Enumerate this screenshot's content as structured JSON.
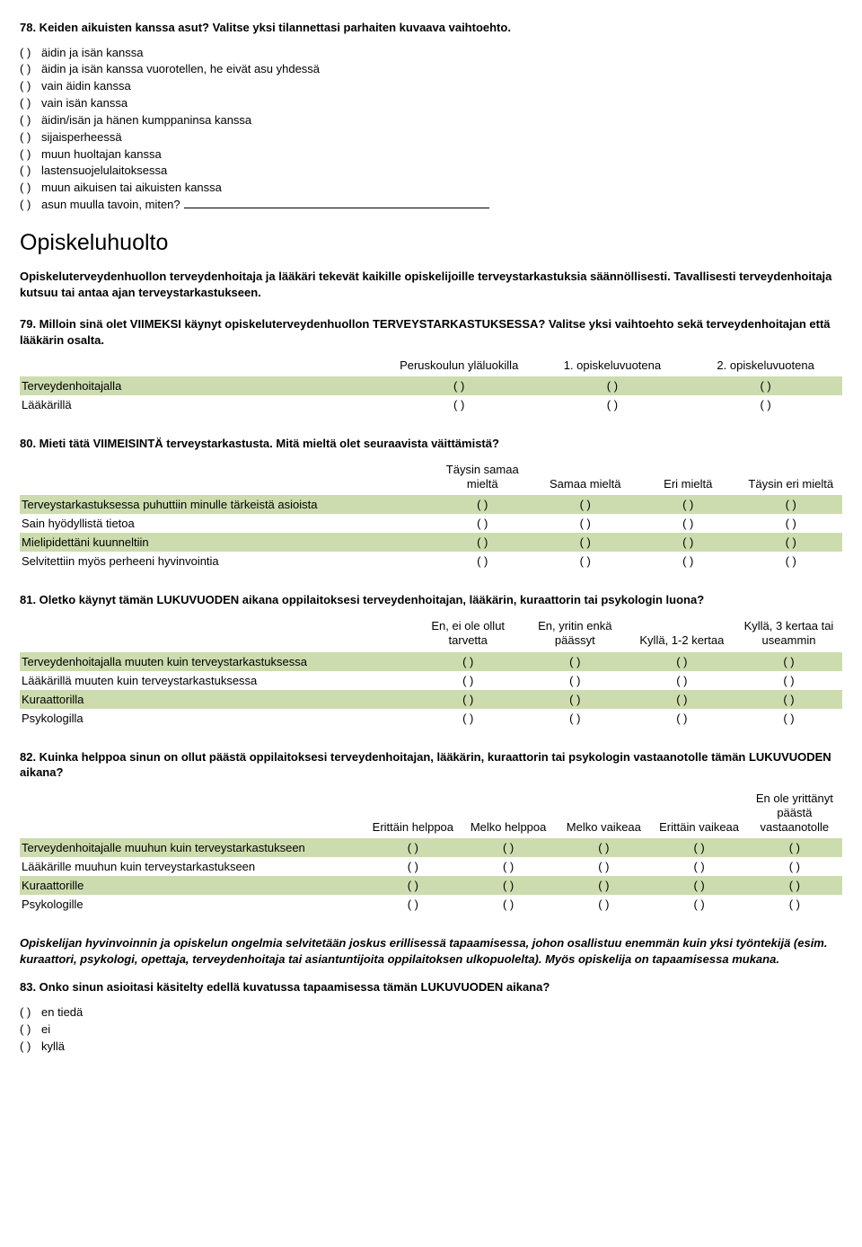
{
  "q78": {
    "title": "78. Keiden aikuisten kanssa asut? Valitse yksi tilannettasi parhaiten kuvaava vaihtoehto.",
    "bullet": "( )",
    "opts": [
      "äidin ja isän kanssa",
      "äidin ja isän kanssa vuorotellen, he eivät asu yhdessä",
      "vain äidin kanssa",
      "vain isän kanssa",
      "äidin/isän ja hänen kumppaninsa kanssa",
      "sijaisperheessä",
      "muun huoltajan kanssa",
      "lastensuojelulaitoksessa",
      "muun aikuisen tai aikuisten kanssa",
      "asun muulla tavoin, miten?"
    ]
  },
  "section_title": "Opiskeluhuolto",
  "section_intro": "Opiskeluterveydenhuollon terveydenhoitaja ja lääkäri tekevät kaikille opiskelijoille terveystarkastuksia säännöllisesti. Tavallisesti terveydenhoitaja kutsuu tai antaa ajan terveystarkastukseen.",
  "q79": {
    "title": "79. Milloin sinä olet VIIMEKSI käynyt opiskeluterveydenhuollon TERVEYSTARKASTUKSESSA? Valitse yksi vaihtoehto sekä terveydenhoitajan että lääkärin osalta.",
    "headers": [
      "Peruskoulun yläluokilla",
      "1. opiskeluvuotena",
      "2. opiskeluvuotena"
    ],
    "rows": [
      "Terveydenhoitajalla",
      "Lääkärillä"
    ],
    "cell": "( )",
    "label_width": "44%",
    "col_width": "18.6%"
  },
  "q80": {
    "title": "80. Mieti tätä VIIMEISINTÄ terveystarkastusta. Mitä mieltä olet seuraavista väittämistä?",
    "headers": [
      "Täysin samaa mieltä",
      "Samaa mieltä",
      "Eri mieltä",
      "Täysin eri mieltä"
    ],
    "rows": [
      "Terveystarkastuksessa puhuttiin minulle tärkeistä asioista",
      "Sain hyödyllistä tietoa",
      "Mielipidettäni kuunneltiin",
      "Selvitettiin myös perheeni hyvinvointia"
    ],
    "cell": "( )",
    "label_width": "50%",
    "col_width": "12.5%"
  },
  "q81": {
    "title": "81. Oletko käynyt tämän LUKUVUODEN aikana oppilaitoksesi terveydenhoitajan, lääkärin, kuraattorin tai psykologin luona?",
    "headers": [
      "En, ei ole ollut tarvetta",
      "En, yritin enkä päässyt",
      "Kyllä, 1-2 kertaa",
      "Kyllä, 3 kertaa tai useammin"
    ],
    "rows": [
      "Terveydenhoitajalla muuten kuin terveystarkastuksessa",
      "Lääkärillä muuten kuin terveystarkastuksessa",
      "Kuraattorilla",
      "Psykologilla"
    ],
    "cell": "( )",
    "label_width": "48%",
    "col_width": "13%"
  },
  "q82": {
    "title": "82. Kuinka helppoa sinun on ollut päästä oppilaitoksesi terveydenhoitajan, lääkärin, kuraattorin tai psykologin vastaanotolle tämän LUKUVUODEN aikana?",
    "headers": [
      "Erittäin helppoa",
      "Melko helppoa",
      "Melko vaikeaa",
      "Erittäin vaikeaa",
      "En ole yrittänyt päästä vastaanotolle"
    ],
    "rows": [
      "Terveydenhoitajalle muuhun kuin terveystarkastukseen",
      "Lääkärille muuhun kuin terveystarkastukseen",
      "Kuraattorille",
      "Psykologille"
    ],
    "cell": "( )",
    "label_width": "42%",
    "col_width": "11.6%"
  },
  "closing_para": "Opiskelijan hyvinvoinnin ja opiskelun ongelmia selvitetään joskus erillisessä tapaamisessa, johon osallistuu enemmän kuin yksi työntekijä (esim. kuraattori, psykologi, opettaja, terveydenhoitaja tai asiantuntijoita oppilaitoksen ulkopuolelta). Myös opiskelija on tapaamisessa mukana.",
  "q83": {
    "title": "83. Onko sinun asioitasi käsitelty edellä kuvatussa tapaamisessa tämän LUKUVUODEN aikana?",
    "bullet": "( )",
    "opts": [
      "en tiedä",
      "ei",
      "kyllä"
    ]
  }
}
